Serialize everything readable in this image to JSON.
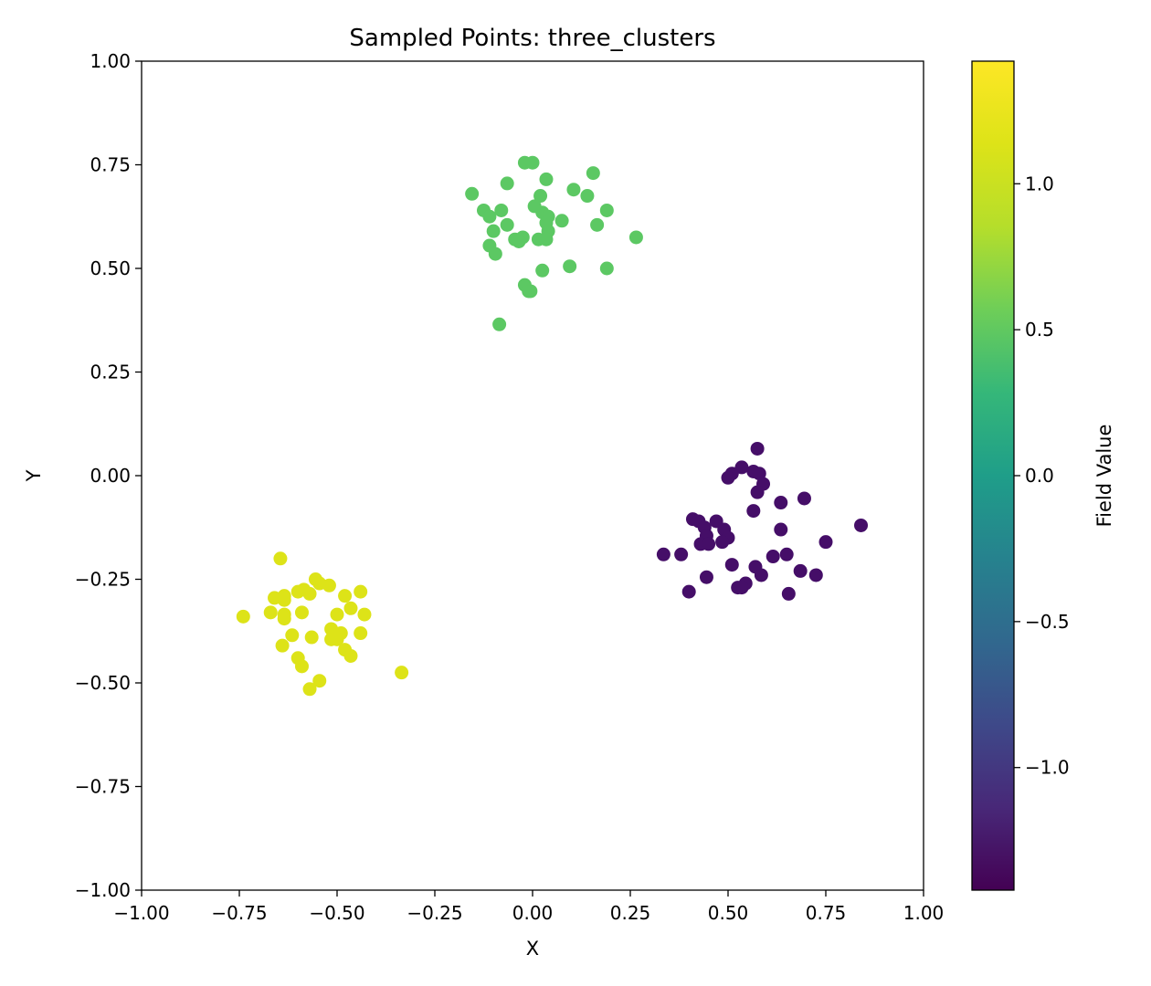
{
  "chart_data": {
    "type": "scatter",
    "title": "Sampled Points: three_clusters",
    "xlabel": "X",
    "ylabel": "Y",
    "xlim": [
      -1.0,
      1.0
    ],
    "ylim": [
      -1.0,
      1.0
    ],
    "xticks": [
      "−1.00",
      "−0.75",
      "−0.50",
      "−0.25",
      "0.00",
      "0.25",
      "0.50",
      "0.75",
      "1.00"
    ],
    "yticks": [
      "−1.00",
      "−0.75",
      "−0.50",
      "−0.25",
      "0.00",
      "0.25",
      "0.50",
      "0.75",
      "1.00"
    ],
    "grid": false,
    "colormap": "viridis",
    "colorbar": {
      "label": "Field Value",
      "range": [
        -1.42,
        1.42
      ],
      "ticks": [
        "−1.0",
        "−0.5",
        "0.0",
        "0.5",
        "1.0"
      ]
    },
    "series": [
      {
        "cluster": "top",
        "color_value": 0.78,
        "color": "#5cc863",
        "points": [
          [
            -0.02,
            0.755
          ],
          [
            0.0,
            0.755
          ],
          [
            0.035,
            0.715
          ],
          [
            0.155,
            0.73
          ],
          [
            -0.155,
            0.68
          ],
          [
            -0.065,
            0.705
          ],
          [
            0.02,
            0.675
          ],
          [
            0.105,
            0.69
          ],
          [
            0.14,
            0.675
          ],
          [
            -0.125,
            0.64
          ],
          [
            -0.11,
            0.625
          ],
          [
            -0.08,
            0.64
          ],
          [
            0.025,
            0.635
          ],
          [
            0.04,
            0.625
          ],
          [
            0.005,
            0.65
          ],
          [
            0.035,
            0.61
          ],
          [
            0.075,
            0.615
          ],
          [
            -0.065,
            0.605
          ],
          [
            0.165,
            0.605
          ],
          [
            0.19,
            0.64
          ],
          [
            -0.1,
            0.59
          ],
          [
            0.04,
            0.59
          ],
          [
            -0.045,
            0.57
          ],
          [
            -0.025,
            0.575
          ],
          [
            -0.035,
            0.565
          ],
          [
            0.015,
            0.57
          ],
          [
            0.035,
            0.57
          ],
          [
            -0.11,
            0.555
          ],
          [
            -0.095,
            0.535
          ],
          [
            0.265,
            0.575
          ],
          [
            0.095,
            0.505
          ],
          [
            0.025,
            0.495
          ],
          [
            0.19,
            0.5
          ],
          [
            -0.02,
            0.46
          ],
          [
            -0.01,
            0.445
          ],
          [
            -0.085,
            0.365
          ],
          [
            -0.005,
            0.445
          ]
        ]
      },
      {
        "cluster": "right",
        "color_value": -1.38,
        "color": "#450e68",
        "points": [
          [
            0.575,
            0.065
          ],
          [
            0.535,
            0.02
          ],
          [
            0.565,
            0.01
          ],
          [
            0.58,
            0.005
          ],
          [
            0.51,
            0.005
          ],
          [
            0.5,
            -0.005
          ],
          [
            0.59,
            -0.02
          ],
          [
            0.575,
            -0.04
          ],
          [
            0.635,
            -0.065
          ],
          [
            0.695,
            -0.055
          ],
          [
            0.565,
            -0.085
          ],
          [
            0.41,
            -0.105
          ],
          [
            0.425,
            -0.11
          ],
          [
            0.47,
            -0.11
          ],
          [
            0.44,
            -0.125
          ],
          [
            0.49,
            -0.13
          ],
          [
            0.445,
            -0.145
          ],
          [
            0.5,
            -0.15
          ],
          [
            0.635,
            -0.13
          ],
          [
            0.84,
            -0.12
          ],
          [
            0.43,
            -0.165
          ],
          [
            0.45,
            -0.165
          ],
          [
            0.485,
            -0.16
          ],
          [
            0.75,
            -0.16
          ],
          [
            0.335,
            -0.19
          ],
          [
            0.38,
            -0.19
          ],
          [
            0.615,
            -0.195
          ],
          [
            0.65,
            -0.19
          ],
          [
            0.51,
            -0.215
          ],
          [
            0.57,
            -0.22
          ],
          [
            0.585,
            -0.24
          ],
          [
            0.685,
            -0.23
          ],
          [
            0.725,
            -0.24
          ],
          [
            0.445,
            -0.245
          ],
          [
            0.545,
            -0.26
          ],
          [
            0.525,
            -0.27
          ],
          [
            0.535,
            -0.27
          ],
          [
            0.4,
            -0.28
          ],
          [
            0.655,
            -0.285
          ]
        ]
      },
      {
        "cluster": "bottom-left",
        "color_value": 1.32,
        "color": "#dde318",
        "points": [
          [
            -0.645,
            -0.2
          ],
          [
            -0.555,
            -0.25
          ],
          [
            -0.52,
            -0.265
          ],
          [
            -0.545,
            -0.26
          ],
          [
            -0.585,
            -0.275
          ],
          [
            -0.6,
            -0.28
          ],
          [
            -0.44,
            -0.28
          ],
          [
            -0.57,
            -0.285
          ],
          [
            -0.635,
            -0.29
          ],
          [
            -0.48,
            -0.29
          ],
          [
            -0.66,
            -0.295
          ],
          [
            -0.635,
            -0.3
          ],
          [
            -0.465,
            -0.32
          ],
          [
            -0.67,
            -0.33
          ],
          [
            -0.59,
            -0.33
          ],
          [
            -0.5,
            -0.335
          ],
          [
            -0.43,
            -0.335
          ],
          [
            -0.635,
            -0.335
          ],
          [
            -0.74,
            -0.34
          ],
          [
            -0.635,
            -0.345
          ],
          [
            -0.515,
            -0.37
          ],
          [
            -0.49,
            -0.38
          ],
          [
            -0.44,
            -0.38
          ],
          [
            -0.615,
            -0.385
          ],
          [
            -0.565,
            -0.39
          ],
          [
            -0.51,
            -0.385
          ],
          [
            -0.515,
            -0.395
          ],
          [
            -0.5,
            -0.395
          ],
          [
            -0.64,
            -0.41
          ],
          [
            -0.48,
            -0.42
          ],
          [
            -0.465,
            -0.435
          ],
          [
            -0.6,
            -0.44
          ],
          [
            -0.59,
            -0.46
          ],
          [
            -0.335,
            -0.475
          ],
          [
            -0.545,
            -0.495
          ],
          [
            -0.57,
            -0.515
          ]
        ]
      }
    ]
  }
}
